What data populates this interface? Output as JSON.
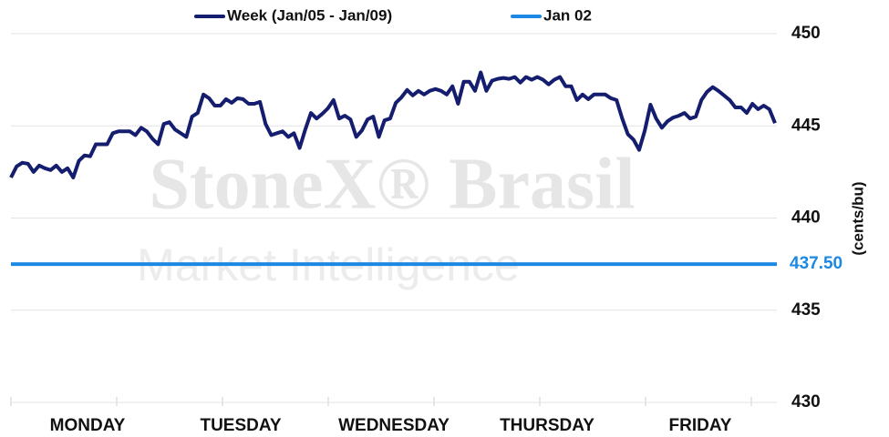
{
  "chart_data": {
    "type": "line",
    "watermark": {
      "line1": "StoneX® Brasil",
      "line2": "Market Intelligence"
    },
    "y_label": "(cents/bu)",
    "x_labels": [
      "MONDAY",
      "TUESDAY",
      "WEDNESDAY",
      "THURSDAY",
      "FRIDAY"
    ],
    "ylim": [
      430,
      450
    ],
    "yticks": [
      430,
      435,
      440,
      445,
      450
    ],
    "grid": true,
    "series": [
      {
        "name": "Week (Jan/05 - Jan/09)",
        "color": "#141d6e",
        "values": [
          442.2,
          442.8,
          443.0,
          442.95,
          442.5,
          442.85,
          442.7,
          442.6,
          442.85,
          442.5,
          442.7,
          442.2,
          443.1,
          443.4,
          443.35,
          444.0,
          444.0,
          444.0,
          444.6,
          444.7,
          444.7,
          444.7,
          444.5,
          444.9,
          444.7,
          444.3,
          444.0,
          445.1,
          445.2,
          444.8,
          444.6,
          444.4,
          445.5,
          445.7,
          446.7,
          446.5,
          446.1,
          446.1,
          446.45,
          446.25,
          446.5,
          446.45,
          446.2,
          446.2,
          446.3,
          445.1,
          444.5,
          444.6,
          444.7,
          444.4,
          444.6,
          443.8,
          444.8,
          445.7,
          445.4,
          445.65,
          445.95,
          446.4,
          445.4,
          445.55,
          445.35,
          444.4,
          444.75,
          445.35,
          445.5,
          444.4,
          445.3,
          445.4,
          446.25,
          446.55,
          446.95,
          446.65,
          446.9,
          446.7,
          446.9,
          447.0,
          446.9,
          446.7,
          447.15,
          446.2,
          447.4,
          447.4,
          446.9,
          447.9,
          446.9,
          447.45,
          447.55,
          447.6,
          447.55,
          447.65,
          447.35,
          447.65,
          447.5,
          447.65,
          447.5,
          447.25,
          447.5,
          447.65,
          447.15,
          447.15,
          446.4,
          446.7,
          446.45,
          446.7,
          446.7,
          446.7,
          446.5,
          446.4,
          445.4,
          444.55,
          444.25,
          443.7,
          444.75,
          446.15,
          445.4,
          444.9,
          445.25,
          445.45,
          445.55,
          445.7,
          445.4,
          445.5,
          446.4,
          446.85,
          447.1,
          446.9,
          446.65,
          446.4,
          446.0,
          446.0,
          445.7,
          446.2,
          445.9,
          446.1,
          445.9,
          445.15
        ]
      },
      {
        "name": "Jan 02",
        "color": "#1b88e3",
        "values": [
          437.5
        ],
        "value_labels": [
          "437.50"
        ]
      }
    ]
  }
}
